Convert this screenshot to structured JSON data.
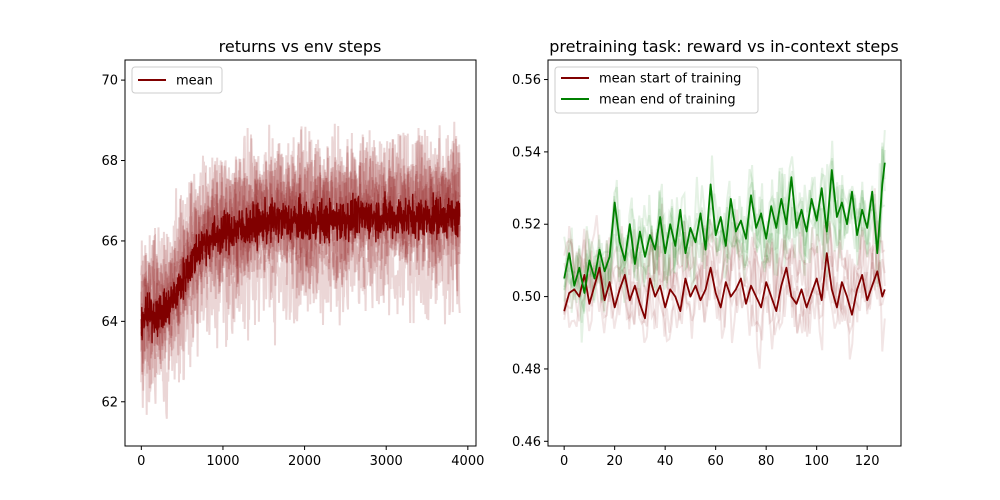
{
  "chart_data": [
    {
      "type": "line",
      "title": "returns vs env steps",
      "xlabel": "",
      "ylabel": "",
      "xlim": [
        -200,
        4100
      ],
      "ylim": [
        60.9,
        70.5
      ],
      "xticks": [
        0,
        1000,
        2000,
        3000,
        4000
      ],
      "yticks": [
        62,
        64,
        66,
        68,
        70
      ],
      "xtick_labels": [
        "0",
        "1000",
        "2000",
        "3000",
        "4000"
      ],
      "ytick_labels": [
        "62",
        "64",
        "66",
        "68",
        "70"
      ],
      "legend": {
        "position": "top-left",
        "entries": [
          "mean"
        ]
      },
      "grid": false,
      "series": [
        {
          "name": "mean",
          "color": "#800000",
          "noise": 0.35,
          "x": [
            0,
            100,
            200,
            300,
            400,
            500,
            600,
            700,
            800,
            900,
            1000,
            1200,
            1400,
            1600,
            1800,
            2000,
            2200,
            2400,
            2600,
            2800,
            3000,
            3200,
            3400,
            3600,
            3800,
            3900
          ],
          "y": [
            64.1,
            64.1,
            64.2,
            64.3,
            64.6,
            65.0,
            65.4,
            65.8,
            66.0,
            66.1,
            66.2,
            66.3,
            66.4,
            66.5,
            66.5,
            66.5,
            66.5,
            66.5,
            66.6,
            66.6,
            66.6,
            66.6,
            66.6,
            66.6,
            66.6,
            66.6
          ]
        }
      ],
      "band": {
        "color": "#800000",
        "spread": 2.2,
        "runs": 8
      }
    },
    {
      "type": "line",
      "title": "pretraining task: reward vs in-context steps",
      "xlabel": "",
      "ylabel": "",
      "xlim": [
        -6.4,
        133.4
      ],
      "ylim": [
        0.4587,
        0.5654
      ],
      "xticks": [
        0,
        20,
        40,
        60,
        80,
        100,
        120
      ],
      "yticks": [
        0.46,
        0.48,
        0.5,
        0.52,
        0.54,
        0.56
      ],
      "xtick_labels": [
        "0",
        "20",
        "40",
        "60",
        "80",
        "100",
        "120"
      ],
      "ytick_labels": [
        "0.46",
        "0.48",
        "0.50",
        "0.52",
        "0.54",
        "0.56"
      ],
      "legend": {
        "position": "top-left",
        "entries": [
          "mean start of training",
          "mean end of training"
        ]
      },
      "grid": false,
      "series": [
        {
          "name": "mean start of training",
          "color": "#800000",
          "x": [
            0,
            2,
            4,
            6,
            8,
            10,
            12,
            14,
            16,
            18,
            20,
            22,
            24,
            26,
            28,
            30,
            32,
            34,
            36,
            38,
            40,
            42,
            44,
            46,
            48,
            50,
            52,
            54,
            56,
            58,
            60,
            62,
            64,
            66,
            68,
            70,
            72,
            74,
            76,
            78,
            80,
            82,
            84,
            86,
            88,
            90,
            92,
            94,
            96,
            98,
            100,
            102,
            104,
            106,
            108,
            110,
            112,
            114,
            116,
            118,
            120,
            122,
            124,
            126,
            127
          ],
          "y": [
            0.496,
            0.501,
            0.502,
            0.5,
            0.506,
            0.498,
            0.503,
            0.508,
            0.499,
            0.504,
            0.497,
            0.502,
            0.506,
            0.499,
            0.503,
            0.498,
            0.494,
            0.505,
            0.5,
            0.503,
            0.497,
            0.502,
            0.5,
            0.496,
            0.505,
            0.5,
            0.503,
            0.499,
            0.502,
            0.508,
            0.501,
            0.497,
            0.504,
            0.5,
            0.502,
            0.505,
            0.498,
            0.503,
            0.5,
            0.497,
            0.504,
            0.5,
            0.496,
            0.503,
            0.508,
            0.5,
            0.498,
            0.502,
            0.497,
            0.501,
            0.505,
            0.499,
            0.512,
            0.502,
            0.497,
            0.504,
            0.5,
            0.495,
            0.502,
            0.506,
            0.499,
            0.503,
            0.507,
            0.5,
            0.502
          ]
        },
        {
          "name": "mean end of training",
          "color": "#008000",
          "x": [
            0,
            2,
            4,
            6,
            8,
            10,
            12,
            14,
            16,
            18,
            20,
            22,
            24,
            26,
            28,
            30,
            32,
            34,
            36,
            38,
            40,
            42,
            44,
            46,
            48,
            50,
            52,
            54,
            56,
            58,
            60,
            62,
            64,
            66,
            68,
            70,
            72,
            74,
            76,
            78,
            80,
            82,
            84,
            86,
            88,
            90,
            92,
            94,
            96,
            98,
            100,
            102,
            104,
            106,
            108,
            110,
            112,
            114,
            116,
            118,
            120,
            122,
            124,
            126,
            127
          ],
          "y": [
            0.505,
            0.512,
            0.503,
            0.508,
            0.501,
            0.51,
            0.505,
            0.513,
            0.507,
            0.511,
            0.526,
            0.515,
            0.51,
            0.52,
            0.509,
            0.518,
            0.511,
            0.517,
            0.513,
            0.522,
            0.512,
            0.52,
            0.514,
            0.524,
            0.512,
            0.519,
            0.515,
            0.523,
            0.513,
            0.531,
            0.517,
            0.522,
            0.514,
            0.527,
            0.518,
            0.521,
            0.516,
            0.528,
            0.519,
            0.523,
            0.516,
            0.525,
            0.519,
            0.527,
            0.52,
            0.533,
            0.519,
            0.524,
            0.518,
            0.527,
            0.521,
            0.53,
            0.518,
            0.535,
            0.522,
            0.526,
            0.52,
            0.529,
            0.517,
            0.524,
            0.519,
            0.529,
            0.512,
            0.531,
            0.537
          ]
        }
      ],
      "bands": [
        {
          "color": "#800000",
          "spread": 0.018,
          "runs": 6
        },
        {
          "color": "#008000",
          "spread": 0.02,
          "runs": 6
        }
      ]
    }
  ]
}
